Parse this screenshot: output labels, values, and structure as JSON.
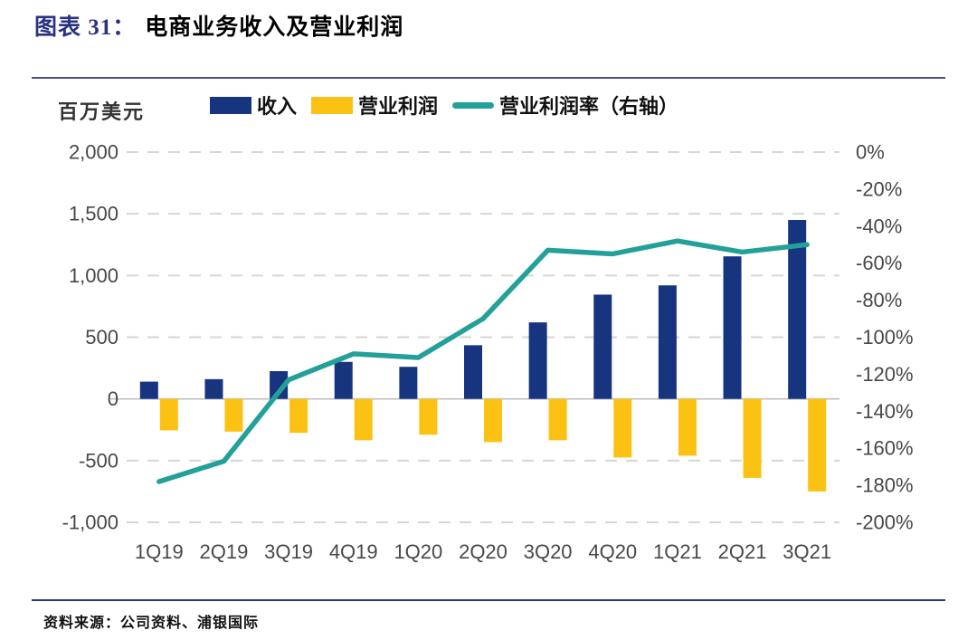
{
  "header": {
    "prefix": "图表 31：",
    "title": "电商业务收入及营业利润"
  },
  "unit_label": "百万美元",
  "legend": [
    {
      "label": "收入",
      "swatch": "rect",
      "color": "#17357E"
    },
    {
      "label": "营业利润",
      "swatch": "rect",
      "color": "#FCC213"
    },
    {
      "label": "营业利润率（右轴）",
      "swatch": "line",
      "color": "#23A099"
    }
  ],
  "chart_data": {
    "type": "bar",
    "subtype": "bar-line-combo",
    "title": "电商业务收入及营业利润",
    "unit": "百万美元",
    "categories": [
      "1Q19",
      "2Q19",
      "3Q19",
      "4Q19",
      "1Q20",
      "2Q20",
      "3Q20",
      "4Q20",
      "1Q21",
      "2Q21",
      "3Q21"
    ],
    "series": [
      {
        "name": "收入",
        "type": "bar",
        "axis": "left",
        "color": "#17357E",
        "values": [
          140,
          160,
          225,
          300,
          260,
          435,
          620,
          845,
          920,
          1155,
          1450
        ]
      },
      {
        "name": "营业利润",
        "type": "bar",
        "axis": "left",
        "color": "#FCC213",
        "values": [
          -255,
          -265,
          -275,
          -335,
          -290,
          -350,
          -335,
          -475,
          -460,
          -640,
          -750
        ]
      },
      {
        "name": "营业利润率（右轴）",
        "type": "line",
        "axis": "right",
        "color": "#23A099",
        "values": [
          -178,
          -167,
          -123,
          -109,
          -111,
          -90,
          -53,
          -55,
          -48,
          -54,
          -50
        ]
      }
    ],
    "left_axis": {
      "range": [
        -1000,
        2000
      ],
      "tick_labels": [
        "2,000",
        "1,500",
        "1,000",
        "500",
        "0",
        "-500",
        "-1,000"
      ],
      "tick_values": [
        2000,
        1500,
        1000,
        500,
        0,
        -500,
        -1000
      ]
    },
    "right_axis": {
      "range": [
        -200,
        0
      ],
      "tick_labels": [
        "0%",
        "-20%",
        "-40%",
        "-60%",
        "-80%",
        "-100%",
        "-120%",
        "-140%",
        "-160%",
        "-180%",
        "-200%"
      ],
      "tick_values": [
        0,
        -20,
        -40,
        -60,
        -80,
        -100,
        -120,
        -140,
        -160,
        -180,
        -200
      ]
    },
    "grid": "horizontal-dashed",
    "legend_position": "top"
  },
  "footer": {
    "source": "资料来源：公司资料、浦银国际"
  },
  "colors": {
    "revenue_bar": "#17357E",
    "profit_bar": "#FCC213",
    "margin_line": "#23A099",
    "gridline": "#D6D6D6",
    "zero_line": "#BFBFBF",
    "tick_text": "#484848",
    "title_accent": "#2A3380",
    "rule_top": "#4A4E8F",
    "rule_bottom": "#2B3480"
  }
}
